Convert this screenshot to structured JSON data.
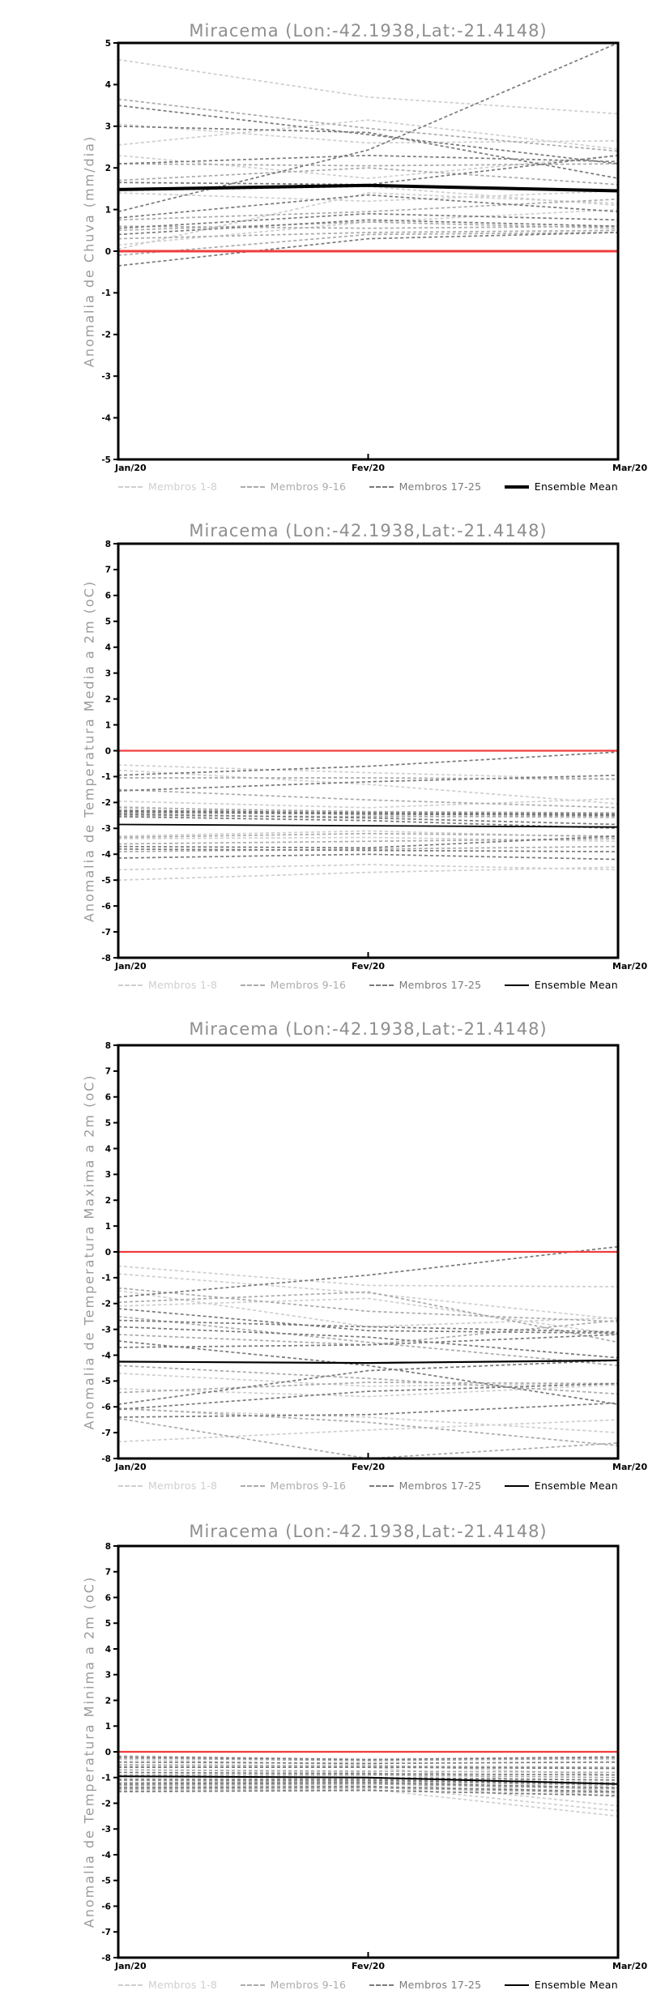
{
  "chart_data": [
    {
      "type": "line",
      "title": "Miracema (Lon:-42.1938,Lat:-21.4148)",
      "ylabel": "Anomalia de Chuva (mm/dia)",
      "xlabel": "",
      "x_labels": [
        "Jan/20",
        "Fev/20",
        "Mar/20"
      ],
      "ylim": [
        -5,
        5
      ],
      "ytick_step": 1,
      "grid": false,
      "legend_position": "bottom",
      "zero_line": {
        "color": "#f03c3c",
        "values": [
          0,
          0,
          0
        ]
      },
      "ensemble_mean": {
        "name": "Ensemble Mean",
        "color": "#000000",
        "line_style": "solid",
        "values": [
          1.48,
          1.58,
          1.45
        ]
      },
      "member_groups": [
        {
          "name": "Membros 1-8",
          "color": "#cfcfcf",
          "line_style": "dashed",
          "members": [
            [
              4.6,
              3.7,
              3.3
            ],
            [
              3.05,
              2.6,
              2.65
            ],
            [
              2.55,
              3.15,
              2.45
            ],
            [
              2.3,
              1.75,
              2.3
            ],
            [
              1.45,
              1.55,
              1.1
            ],
            [
              1.4,
              1.2,
              1.45
            ],
            [
              0.15,
              0.7,
              1.0
            ],
            [
              0.05,
              1.4,
              1.15
            ]
          ]
        },
        {
          "name": "Membros 9-16",
          "color": "#ababab",
          "line_style": "dashed",
          "members": [
            [
              3.65,
              2.95,
              2.4
            ],
            [
              2.1,
              2.05,
              2.1
            ],
            [
              1.7,
              2.0,
              1.6
            ],
            [
              0.75,
              0.95,
              1.25
            ],
            [
              0.6,
              0.55,
              0.6
            ],
            [
              0.5,
              0.7,
              0.55
            ],
            [
              0.3,
              0.45,
              0.5
            ],
            [
              -0.1,
              0.4,
              0.45
            ]
          ]
        },
        {
          "name": "Membros 17-25",
          "color": "#7a7a7a",
          "line_style": "dashed",
          "members": [
            [
              3.5,
              2.8,
              2.1
            ],
            [
              3.0,
              2.85,
              1.75
            ],
            [
              2.1,
              2.3,
              2.15
            ],
            [
              1.65,
              1.6,
              2.3
            ],
            [
              0.95,
              2.43,
              5.0
            ],
            [
              0.8,
              1.35,
              0.95
            ],
            [
              0.55,
              0.9,
              0.75
            ],
            [
              0.4,
              0.75,
              0.6
            ],
            [
              -0.35,
              0.3,
              0.45
            ]
          ]
        }
      ]
    },
    {
      "type": "line",
      "title": "Miracema (Lon:-42.1938,Lat:-21.4148)",
      "ylabel": "Anomalia de Temperatura Media a 2m (oC)",
      "xlabel": "",
      "x_labels": [
        "Jan/20",
        "Fev/20",
        "Mar/20"
      ],
      "ylim": [
        -8,
        8
      ],
      "ytick_step": 1,
      "grid": false,
      "legend_position": "bottom",
      "zero_line": {
        "color": "#f03c3c",
        "values": [
          0,
          0,
          0
        ]
      },
      "ensemble_mean": {
        "name": "Ensemble Mean",
        "color": "#000000",
        "line_style": "solid",
        "values": [
          -2.85,
          -2.9,
          -2.95
        ]
      },
      "member_groups": [
        {
          "name": "Membros 1-8",
          "color": "#cfcfcf",
          "line_style": "dashed",
          "members": [
            [
              -0.55,
              -0.85,
              -1.1
            ],
            [
              -0.75,
              -1.3,
              -2.05
            ],
            [
              -1.95,
              -2.2,
              -1.85
            ],
            [
              -2.15,
              -2.5,
              -2.6
            ],
            [
              -3.3,
              -3.1,
              -3.35
            ],
            [
              -3.4,
              -3.35,
              -3.5
            ],
            [
              -4.6,
              -4.4,
              -4.6
            ],
            [
              -5.0,
              -4.7,
              -4.5
            ]
          ]
        },
        {
          "name": "Membros 9-16",
          "color": "#ababab",
          "line_style": "dashed",
          "members": [
            [
              -1.05,
              -1.05,
              -1.1
            ],
            [
              -1.5,
              -1.9,
              -2.2
            ],
            [
              -2.2,
              -2.35,
              -2.4
            ],
            [
              -2.4,
              -2.45,
              -2.5
            ],
            [
              -2.5,
              -2.55,
              -2.55
            ],
            [
              -3.35,
              -3.2,
              -3.3
            ],
            [
              -3.6,
              -3.5,
              -3.4
            ],
            [
              -3.9,
              -3.8,
              -3.7
            ]
          ]
        },
        {
          "name": "Membros 17-25",
          "color": "#7a7a7a",
          "line_style": "dashed",
          "members": [
            [
              -0.95,
              -0.6,
              -0.05
            ],
            [
              -1.55,
              -1.2,
              -0.95
            ],
            [
              -2.3,
              -2.4,
              -2.45
            ],
            [
              -2.35,
              -2.45,
              -2.5
            ],
            [
              -2.45,
              -2.6,
              -2.85
            ],
            [
              -2.55,
              -2.7,
              -3.0
            ],
            [
              -3.7,
              -3.75,
              -3.3
            ],
            [
              -3.8,
              -3.85,
              -3.9
            ],
            [
              -4.15,
              -4.0,
              -4.2
            ]
          ]
        }
      ]
    },
    {
      "type": "line",
      "title": "Miracema (Lon:-42.1938,Lat:-21.4148)",
      "ylabel": "Anomalia de Temperatura Maxima a 2m (oC)",
      "xlabel": "",
      "x_labels": [
        "Jan/20",
        "Fev/20",
        "Mar/20"
      ],
      "ylim": [
        -8,
        8
      ],
      "ytick_step": 1,
      "grid": false,
      "legend_position": "bottom",
      "zero_line": {
        "color": "#f03c3c",
        "values": [
          0,
          0,
          0
        ]
      },
      "ensemble_mean": {
        "name": "Ensemble Mean",
        "color": "#000000",
        "line_style": "solid",
        "values": [
          -4.25,
          -4.3,
          -4.2
        ]
      },
      "member_groups": [
        {
          "name": "Membros 1-8",
          "color": "#cfcfcf",
          "line_style": "dashed",
          "members": [
            [
              -0.55,
              -1.3,
              -1.35
            ],
            [
              -0.85,
              -1.6,
              -2.6
            ],
            [
              -1.5,
              -2.9,
              -2.55
            ],
            [
              -2.1,
              -1.8,
              -3.2
            ],
            [
              -4.7,
              -5.2,
              -5.1
            ],
            [
              -5.3,
              -5.6,
              -5.15
            ],
            [
              -6.1,
              -6.4,
              -7.0
            ],
            [
              -7.35,
              -6.9,
              -6.5
            ]
          ]
        },
        {
          "name": "Membros 9-16",
          "color": "#ababab",
          "line_style": "dashed",
          "members": [
            [
              -1.4,
              -2.3,
              -2.7
            ],
            [
              -1.95,
              -1.55,
              -3.5
            ],
            [
              -2.5,
              -3.5,
              -4.4
            ],
            [
              -3.2,
              -3.6,
              -2.65
            ],
            [
              -4.4,
              -4.9,
              -5.5
            ],
            [
              -5.45,
              -5.05,
              -5.1
            ],
            [
              -6.05,
              -6.6,
              -7.5
            ],
            [
              -6.45,
              -8.0,
              -7.4
            ]
          ]
        },
        {
          "name": "Membros 17-25",
          "color": "#7a7a7a",
          "line_style": "dashed",
          "members": [
            [
              -1.75,
              -0.9,
              0.2
            ],
            [
              -2.2,
              -3.05,
              -3.15
            ],
            [
              -2.65,
              -2.9,
              -3.1
            ],
            [
              -2.9,
              -3.3,
              -4.1
            ],
            [
              -3.45,
              -4.4,
              -5.9
            ],
            [
              -3.7,
              -3.6,
              -3.2
            ],
            [
              -5.9,
              -4.6,
              -4.2
            ],
            [
              -6.1,
              -5.4,
              -5.1
            ],
            [
              -6.4,
              -6.3,
              -5.85
            ]
          ]
        }
      ]
    },
    {
      "type": "line",
      "title": "Miracema (Lon:-42.1938,Lat:-21.4148)",
      "ylabel": "Anomalia de Temperatura Minima a 2m (oC)",
      "xlabel": "",
      "x_labels": [
        "Jan/20",
        "Fev/20",
        "Mar/20"
      ],
      "ylim": [
        -8,
        8
      ],
      "ytick_step": 1,
      "grid": false,
      "legend_position": "bottom",
      "zero_line": {
        "color": "#f03c3c",
        "values": [
          0,
          0,
          0
        ]
      },
      "ensemble_mean": {
        "name": "Ensemble Mean",
        "color": "#000000",
        "line_style": "solid",
        "values": [
          -0.95,
          -1.0,
          -1.25
        ]
      },
      "member_groups": [
        {
          "name": "Membros 1-8",
          "color": "#cfcfcf",
          "line_style": "dashed",
          "members": [
            [
              -0.15,
              -0.3,
              -0.3
            ],
            [
              -0.3,
              -0.5,
              -0.9
            ],
            [
              -0.55,
              -0.6,
              -1.4
            ],
            [
              -0.7,
              -0.8,
              -1.55
            ],
            [
              -0.95,
              -1.0,
              -1.75
            ],
            [
              -1.2,
              -1.1,
              -2.1
            ],
            [
              -1.35,
              -1.3,
              -2.3
            ],
            [
              -1.5,
              -1.45,
              -2.5
            ]
          ]
        },
        {
          "name": "Membros 9-16",
          "color": "#ababab",
          "line_style": "dashed",
          "members": [
            [
              -0.25,
              -0.35,
              -0.25
            ],
            [
              -0.5,
              -0.55,
              -0.6
            ],
            [
              -0.7,
              -0.75,
              -0.8
            ],
            [
              -0.9,
              -0.9,
              -1.0
            ],
            [
              -1.05,
              -1.05,
              -1.2
            ],
            [
              -1.2,
              -1.15,
              -1.3
            ],
            [
              -1.3,
              -1.25,
              -1.45
            ],
            [
              -1.45,
              -1.4,
              -1.6
            ]
          ]
        },
        {
          "name": "Membros 17-25",
          "color": "#7a7a7a",
          "line_style": "dashed",
          "members": [
            [
              -0.2,
              -0.3,
              -0.2
            ],
            [
              -0.4,
              -0.45,
              -0.4
            ],
            [
              -0.6,
              -0.6,
              -0.65
            ],
            [
              -0.8,
              -0.85,
              -0.9
            ],
            [
              -0.95,
              -1.0,
              -1.1
            ],
            [
              -1.1,
              -1.1,
              -1.25
            ],
            [
              -1.25,
              -1.2,
              -1.4
            ],
            [
              -1.4,
              -1.35,
              -1.55
            ],
            [
              -1.55,
              -1.5,
              -1.7
            ]
          ]
        }
      ]
    }
  ]
}
